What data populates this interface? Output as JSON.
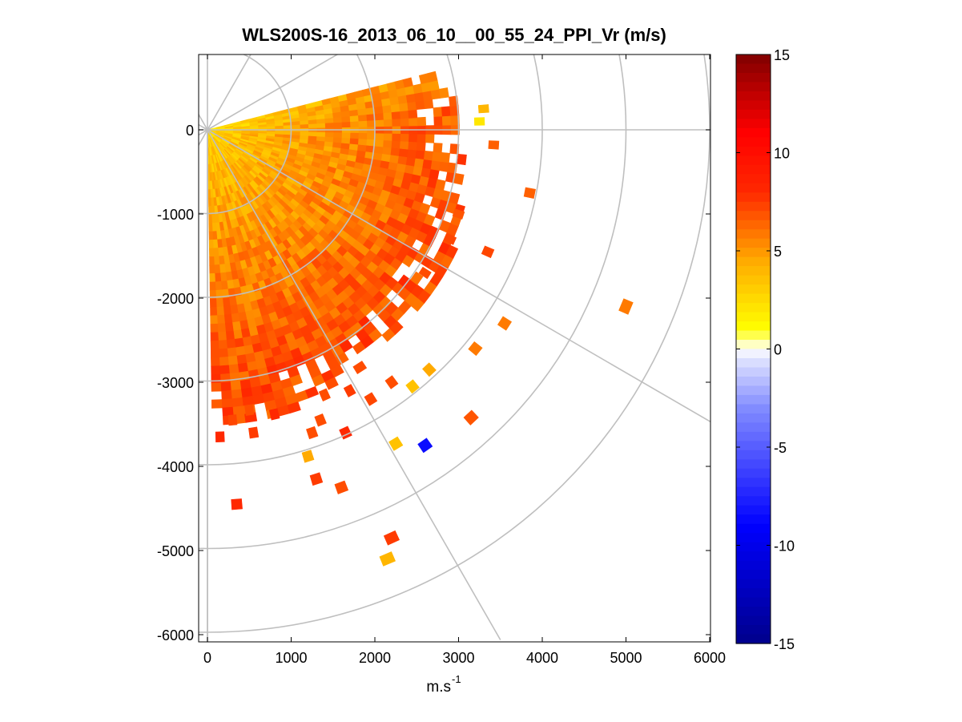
{
  "chart_data": {
    "type": "heatmap",
    "subtype": "polar PPI scan (radial velocity)",
    "title": "WLS200S-16_2013_06_10__00_55_24_PPI_Vr (m/s)",
    "xlabel": "m.s",
    "xlabel_exponent": "-1",
    "ylabel": "",
    "xlim": [
      -100,
      6000
    ],
    "ylim": [
      -6100,
      900
    ],
    "xticks": [
      0,
      1000,
      2000,
      3000,
      4000,
      5000,
      6000
    ],
    "yticks": [
      0,
      -1000,
      -2000,
      -3000,
      -4000,
      -5000,
      -6000
    ],
    "polar_grid": {
      "origin": [
        0,
        0
      ],
      "rings_m": [
        1000,
        2000,
        3000,
        4000,
        5000,
        6000
      ],
      "spokes_deg_from_east": [
        0,
        30,
        60,
        90,
        -30,
        -60,
        -90
      ]
    },
    "colorbar": {
      "range": [
        -15,
        15
      ],
      "ticks": [
        15,
        10,
        5,
        0,
        -5,
        -10,
        -15
      ],
      "colormap": "blue-white-yellow-red-darkred"
    },
    "scan_sector": {
      "azimuth_from_east_deg": [
        -88,
        15
      ],
      "max_range_m": 3300,
      "gate_length_m": 100,
      "beam_width_deg": 2.2,
      "velocity_near_mps": 2.5,
      "velocity_far_mps": 7.0
    },
    "isolated_points": [
      {
        "x": 3250,
        "y": 100,
        "v": 2
      },
      {
        "x": 3300,
        "y": 250,
        "v": 4
      },
      {
        "x": 3420,
        "y": -180,
        "v": 6.5
      },
      {
        "x": 3850,
        "y": -750,
        "v": 6.5
      },
      {
        "x": 3000,
        "y": -1000,
        "v": 6.8
      },
      {
        "x": 2900,
        "y": -1300,
        "v": 7.2
      },
      {
        "x": 3350,
        "y": -1450,
        "v": 7.2
      },
      {
        "x": 2600,
        "y": -1700,
        "v": 7.0
      },
      {
        "x": 5000,
        "y": -2100,
        "v": 5.8
      },
      {
        "x": 3550,
        "y": -2300,
        "v": 5.8
      },
      {
        "x": 3200,
        "y": -2600,
        "v": 5.8
      },
      {
        "x": 2650,
        "y": -2850,
        "v": 4.5
      },
      {
        "x": 2450,
        "y": -3050,
        "v": 3.5
      },
      {
        "x": 2200,
        "y": -3000,
        "v": 7.0
      },
      {
        "x": 1950,
        "y": -3200,
        "v": 7.2
      },
      {
        "x": 1700,
        "y": -3100,
        "v": 7.5
      },
      {
        "x": 1400,
        "y": -3150,
        "v": 7.0
      },
      {
        "x": 1350,
        "y": -3450,
        "v": 7.0
      },
      {
        "x": 3150,
        "y": -3420,
        "v": 6.8
      },
      {
        "x": 2600,
        "y": -3750,
        "v": -8.5
      },
      {
        "x": 2250,
        "y": -3730,
        "v": 3.5
      },
      {
        "x": 1650,
        "y": -3600,
        "v": 8.0
      },
      {
        "x": 1250,
        "y": -3600,
        "v": 7.0
      },
      {
        "x": 1200,
        "y": -3880,
        "v": 4.5
      },
      {
        "x": 1300,
        "y": -4150,
        "v": 7.5
      },
      {
        "x": 1600,
        "y": -4250,
        "v": 7.0
      },
      {
        "x": 800,
        "y": -3380,
        "v": 8.0
      },
      {
        "x": 550,
        "y": -3600,
        "v": 7.5
      },
      {
        "x": 500,
        "y": -3330,
        "v": 7.0
      },
      {
        "x": 300,
        "y": -3450,
        "v": 7.2
      },
      {
        "x": 150,
        "y": -3650,
        "v": 8.0
      },
      {
        "x": 350,
        "y": -4450,
        "v": 8.0
      },
      {
        "x": 2200,
        "y": -4850,
        "v": 7.5
      },
      {
        "x": 2150,
        "y": -5100,
        "v": 4.0
      }
    ]
  }
}
